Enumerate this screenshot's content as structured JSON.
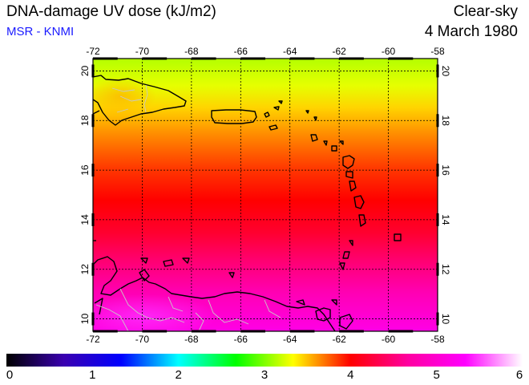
{
  "header": {
    "title": "DNA-damage UV dose (kJ/m2)",
    "subtitle": "MSR - KNMI",
    "condition": "Clear-sky",
    "date": "4 March 1980"
  },
  "map": {
    "lon_range": [
      -72,
      -58
    ],
    "lat_range": [
      9.5,
      20.5
    ],
    "lon_ticks": [
      "-72",
      "-70",
      "-68",
      "-66",
      "-64",
      "-62",
      "-60",
      "-58"
    ],
    "lat_ticks": [
      "10",
      "12",
      "14",
      "16",
      "18",
      "20"
    ],
    "gridlines": "dotted",
    "coastline_color": "#000000",
    "border_color": "#c8c8c8"
  },
  "colorbar": {
    "min": 0,
    "max": 6,
    "ticks": [
      "0",
      "1",
      "2",
      "3",
      "4",
      "5",
      "6"
    ],
    "colors": [
      "#000000",
      "#3a00b0",
      "#0000ff",
      "#00ffff",
      "#00ff00",
      "#ffff00",
      "#ff0000",
      "#ff00a0",
      "#ff00ff",
      "#ffffff"
    ]
  }
}
